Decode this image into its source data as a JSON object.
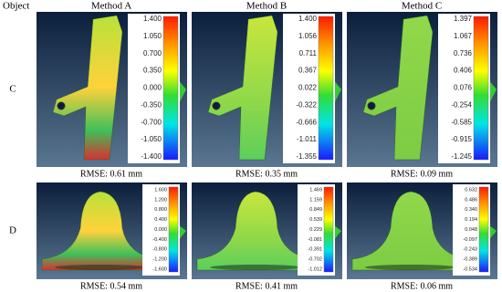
{
  "header": {
    "object": "Object",
    "methods": [
      "Method A",
      "Method B",
      "Method C"
    ]
  },
  "rows": [
    {
      "label": "C",
      "cells": [
        {
          "ticks": [
            "1.400",
            "1.050",
            "0.700",
            "0.350",
            "0.000",
            "-0.350",
            "-0.700",
            "-1.050",
            "-1.400"
          ],
          "rmse": "RMSE: 0.61 mm"
        },
        {
          "ticks": [
            "1.400",
            "1.056",
            "0.711",
            "0.367",
            "0.022",
            "-0.322",
            "-0.666",
            "-1.011",
            "-1.355"
          ],
          "rmse": "RMSE: 0.35 mm"
        },
        {
          "ticks": [
            "1.397",
            "1.067",
            "0.736",
            "0.406",
            "0.076",
            "-0.254",
            "-0.585",
            "-0.915",
            "-1.245"
          ],
          "rmse": "RMSE: 0.09 mm"
        }
      ]
    },
    {
      "label": "D",
      "cells": [
        {
          "ticks": [
            "1.600",
            "1.200",
            "0.800",
            "0.400",
            "0.000",
            "-0.400",
            "-0.800",
            "-1.200",
            "-1.600"
          ],
          "rmse": "RMSE: 0.54 mm"
        },
        {
          "ticks": [
            "1.469",
            "1.159",
            "0.849",
            "0.539",
            "0.229",
            "-0.081",
            "-0.391",
            "-0.702",
            "-1.012"
          ],
          "rmse": "RMSE: 0.41 mm"
        },
        {
          "ticks": [
            "0.632",
            "0.486",
            "0.340",
            "0.194",
            "0.048",
            "-0.097",
            "-0.243",
            "-0.389",
            "-0.534"
          ],
          "rmse": "RMSE: 0.06 mm"
        }
      ]
    }
  ]
}
